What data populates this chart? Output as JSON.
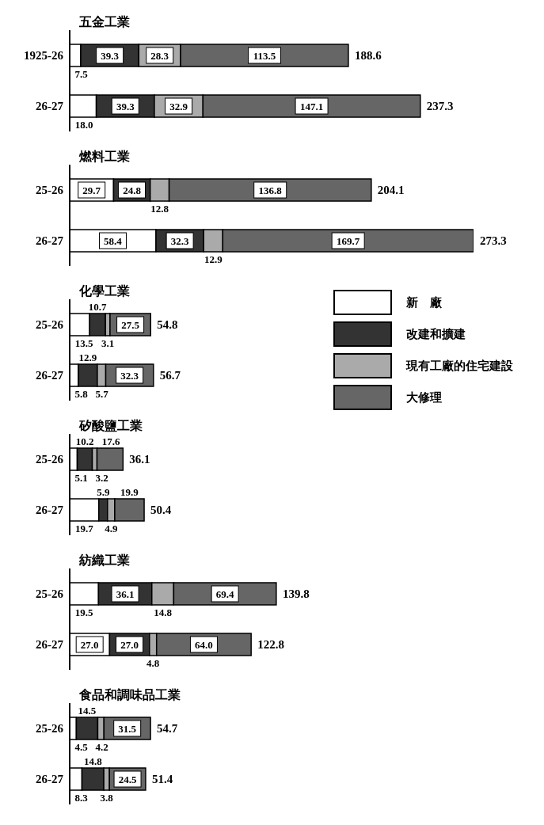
{
  "chart_data": [
    {
      "type": "bar",
      "title": "五金工業",
      "orientation": "horizontal",
      "stacked": true,
      "categories": [
        "1925-26",
        "26-27"
      ],
      "series": [
        {
          "color": "#ffffff",
          "values": [
            7.5,
            18.0
          ],
          "value_labels": [
            "7.5",
            "18.0"
          ]
        },
        {
          "color": "#333333",
          "values": [
            39.3,
            39.3
          ],
          "value_labels": [
            "39.3",
            "39.3"
          ]
        },
        {
          "color": "#aaaaaa",
          "values": [
            28.3,
            32.9
          ],
          "value_labels": [
            "28.3",
            "32.9"
          ]
        },
        {
          "color": "#666666",
          "values": [
            113.5,
            147.1
          ],
          "value_labels": [
            "113.5",
            "147.1"
          ]
        }
      ],
      "totals": [
        "188.6",
        "237.3"
      ]
    },
    {
      "type": "bar",
      "title": "燃料工業",
      "orientation": "horizontal",
      "stacked": true,
      "categories": [
        "25-26",
        "26-27"
      ],
      "series": [
        {
          "color": "#ffffff",
          "values": [
            29.7,
            58.4
          ],
          "value_labels": [
            "29.7",
            "58.4"
          ]
        },
        {
          "color": "#333333",
          "values": [
            24.8,
            32.3
          ],
          "value_labels": [
            "24.8",
            "32.3"
          ]
        },
        {
          "color": "#aaaaaa",
          "values": [
            12.8,
            12.9
          ],
          "value_labels": [
            "12.8",
            "12.9"
          ]
        },
        {
          "color": "#666666",
          "values": [
            136.8,
            169.7
          ],
          "value_labels": [
            "136.8",
            "169.7"
          ]
        }
      ],
      "totals": [
        "204.1",
        "273.3"
      ]
    },
    {
      "type": "bar",
      "title": "化學工業",
      "orientation": "horizontal",
      "stacked": true,
      "legend": "right",
      "categories": [
        "25-26",
        "26-27"
      ],
      "series": [
        {
          "name": "新　廠",
          "color": "#ffffff",
          "values": [
            13.5,
            5.8
          ],
          "value_labels": [
            "13.5",
            "5.8"
          ]
        },
        {
          "name": "改建和擴建",
          "color": "#333333",
          "values": [
            10.7,
            12.9
          ],
          "value_labels": [
            "10.7",
            "12.9"
          ]
        },
        {
          "name": "現有工廠的住宅建設",
          "color": "#aaaaaa",
          "values": [
            3.1,
            5.7
          ],
          "value_labels": [
            "3.1",
            "5.7"
          ]
        },
        {
          "name": "大修理",
          "color": "#666666",
          "values": [
            27.5,
            32.3
          ],
          "value_labels": [
            "27.5",
            "32.3"
          ]
        }
      ],
      "totals": [
        "54.8",
        "56.7"
      ]
    },
    {
      "type": "bar",
      "title": "矽酸鹽工業",
      "orientation": "horizontal",
      "stacked": true,
      "categories": [
        "25-26",
        "26-27"
      ],
      "series": [
        {
          "color": "#ffffff",
          "values": [
            5.1,
            19.7
          ],
          "value_labels": [
            "5.1",
            "19.7"
          ]
        },
        {
          "color": "#333333",
          "values": [
            10.2,
            5.9
          ],
          "value_labels": [
            "10.2",
            "5.9"
          ]
        },
        {
          "color": "#aaaaaa",
          "values": [
            3.2,
            4.9
          ],
          "value_labels": [
            "3.2",
            "4.9"
          ]
        },
        {
          "color": "#666666",
          "values": [
            17.6,
            19.9
          ],
          "value_labels": [
            "17.6",
            "19.9"
          ]
        }
      ],
      "totals": [
        "36.1",
        "50.4"
      ]
    },
    {
      "type": "bar",
      "title": "紡織工業",
      "orientation": "horizontal",
      "stacked": true,
      "categories": [
        "25-26",
        "26-27"
      ],
      "series": [
        {
          "color": "#ffffff",
          "values": [
            19.5,
            27.0
          ],
          "value_labels": [
            "19.5",
            "27.0"
          ]
        },
        {
          "color": "#333333",
          "values": [
            36.1,
            27.0
          ],
          "value_labels": [
            "36.1",
            "27.0"
          ]
        },
        {
          "color": "#aaaaaa",
          "values": [
            14.8,
            4.8
          ],
          "value_labels": [
            "14.8",
            "4.8"
          ]
        },
        {
          "color": "#666666",
          "values": [
            69.4,
            64.0
          ],
          "value_labels": [
            "69.4",
            "64.0"
          ]
        }
      ],
      "totals": [
        "139.8",
        "122.8"
      ]
    },
    {
      "type": "bar",
      "title": "食品和調味品工業",
      "orientation": "horizontal",
      "stacked": true,
      "categories": [
        "25-26",
        "26-27"
      ],
      "series": [
        {
          "color": "#ffffff",
          "values": [
            4.5,
            8.3
          ],
          "value_labels": [
            "4.5",
            "8.3"
          ]
        },
        {
          "color": "#333333",
          "values": [
            14.5,
            14.8
          ],
          "value_labels": [
            "14.5",
            "14.8"
          ]
        },
        {
          "color": "#aaaaaa",
          "values": [
            4.2,
            3.8
          ],
          "value_labels": [
            "4.2",
            "3.8"
          ]
        },
        {
          "color": "#666666",
          "values": [
            31.5,
            24.5
          ],
          "value_labels": [
            "31.5",
            "24.5"
          ]
        }
      ],
      "totals": [
        "54.7",
        "51.4"
      ]
    }
  ]
}
